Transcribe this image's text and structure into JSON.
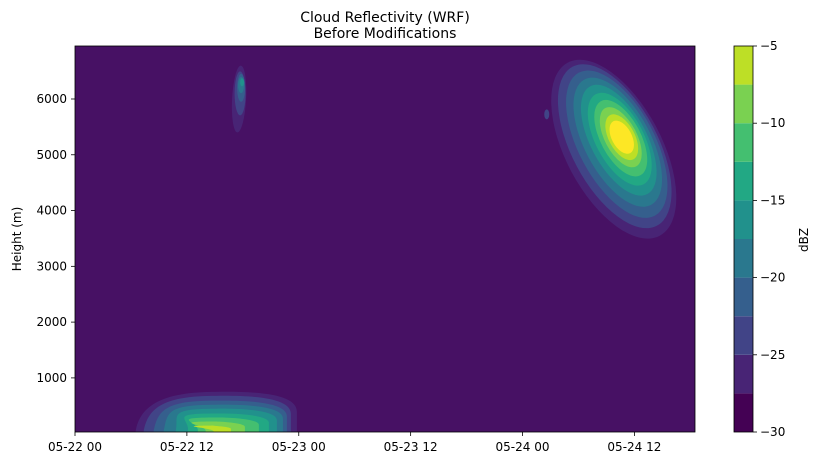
{
  "chart_data": {
    "type": "heatmap",
    "subtype": "filled-contour",
    "title": "Cloud Reflectivity (WRF)",
    "subtitle": "Before Modifications",
    "xlabel": "",
    "ylabel": "Height (m)",
    "x_ticks": [
      "05-22 00",
      "05-22 12",
      "05-23 00",
      "05-23 12",
      "05-24 00",
      "05-24 12"
    ],
    "x_range_hours": [
      0,
      66.5
    ],
    "y_ticks": [
      1000,
      2000,
      3000,
      4000,
      5000,
      6000
    ],
    "ylim": [
      30,
      6950
    ],
    "colorbar": {
      "label": "dBZ",
      "levels": [
        -30,
        -27.5,
        -25,
        -22.5,
        -20,
        -17.5,
        -15,
        -12.5,
        -10,
        -7.5,
        -5
      ],
      "tick_labels": [
        "−30",
        "−25",
        "−20",
        "−15",
        "−10",
        "−5"
      ],
      "ticks": [
        -30,
        -25,
        -20,
        -15,
        -10,
        -5
      ],
      "colors": [
        "#440154",
        "#482475",
        "#414487",
        "#355f8d",
        "#2a788e",
        "#21918c",
        "#22a884",
        "#44bf70",
        "#7ad151",
        "#bddf26",
        "#fde725"
      ],
      "background": "#471164"
    },
    "features": [
      {
        "name": "low-cloud",
        "t_start": 6.5,
        "t_end": 23.8,
        "z_bottom": 30,
        "z_top": 750,
        "peak_dbz": -7,
        "peak_time": 14,
        "peak_height": 200
      },
      {
        "name": "mid-cloud-small",
        "t_start": 16.8,
        "t_end": 18.8,
        "z_bottom": 5400,
        "z_top": 6600,
        "peak_dbz": -16,
        "peak_time": 17.6,
        "peak_height": 6200
      },
      {
        "name": "speck",
        "t_start": 50.4,
        "t_end": 50.8,
        "z_bottom": 5650,
        "z_top": 5800,
        "peak_dbz": -25
      },
      {
        "name": "upper-cloud",
        "t_start": 54.2,
        "t_end": 62.3,
        "z_bottom": 3400,
        "z_top": 6700,
        "peak_dbz": -7,
        "peak_time": 58,
        "peak_height": 5100
      }
    ]
  }
}
